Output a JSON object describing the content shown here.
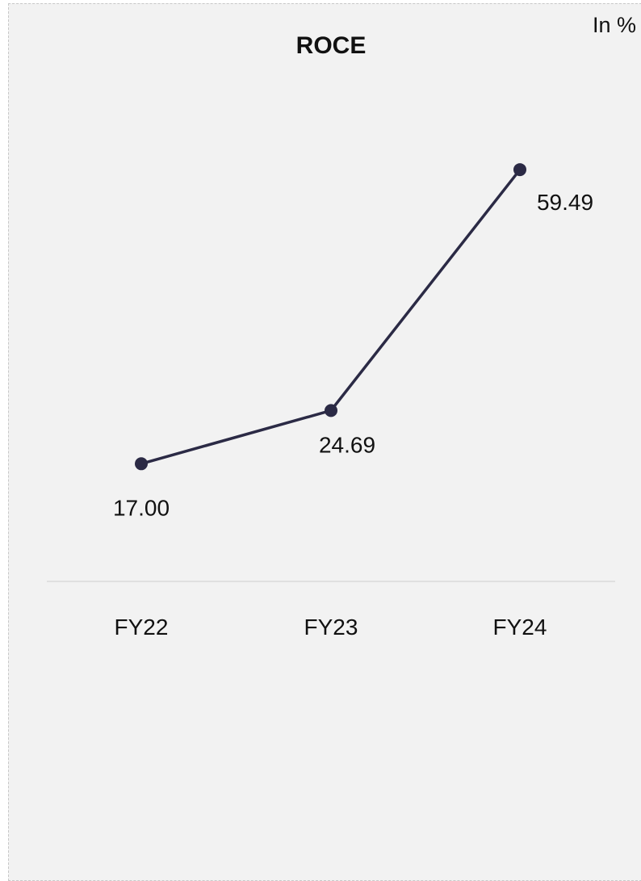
{
  "unit_label": "In %",
  "colors": {
    "line": "#2b2a45",
    "text": "#111111",
    "axis": "#d9d9d9",
    "background": "#f2f2f2"
  },
  "chart_data": {
    "type": "line",
    "title": "ROCE",
    "xlabel": "",
    "ylabel": "",
    "categories": [
      "FY22",
      "FY23",
      "FY24"
    ],
    "series": [
      {
        "values": [
          17.0,
          24.69,
          59.49
        ],
        "data_labels": [
          "17.00",
          "24.69",
          "59.49"
        ]
      }
    ],
    "ylim": [
      0,
      70
    ],
    "grid": false,
    "legend": "none"
  }
}
